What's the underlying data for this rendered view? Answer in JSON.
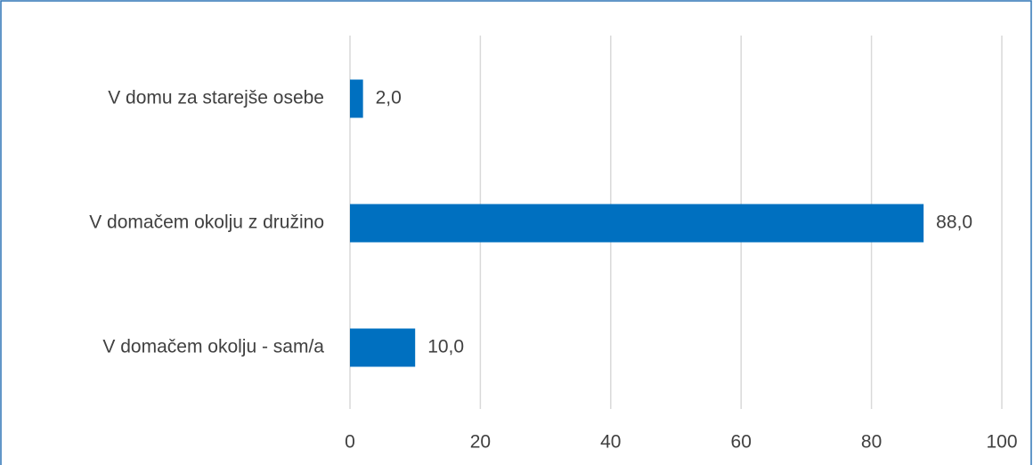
{
  "chart_data": {
    "type": "bar",
    "orientation": "horizontal",
    "categories": [
      "V domu za starejše osebe",
      "V domačem okolju z družino",
      "V domačem okolju - sam/a"
    ],
    "values": [
      2.0,
      88.0,
      10.0
    ],
    "value_labels": [
      "2,0",
      "88,0",
      "10,0"
    ],
    "color": "#0070c0",
    "xlim": [
      0,
      100
    ],
    "xticks": [
      0,
      20,
      40,
      60,
      80,
      100
    ],
    "grid": true
  }
}
